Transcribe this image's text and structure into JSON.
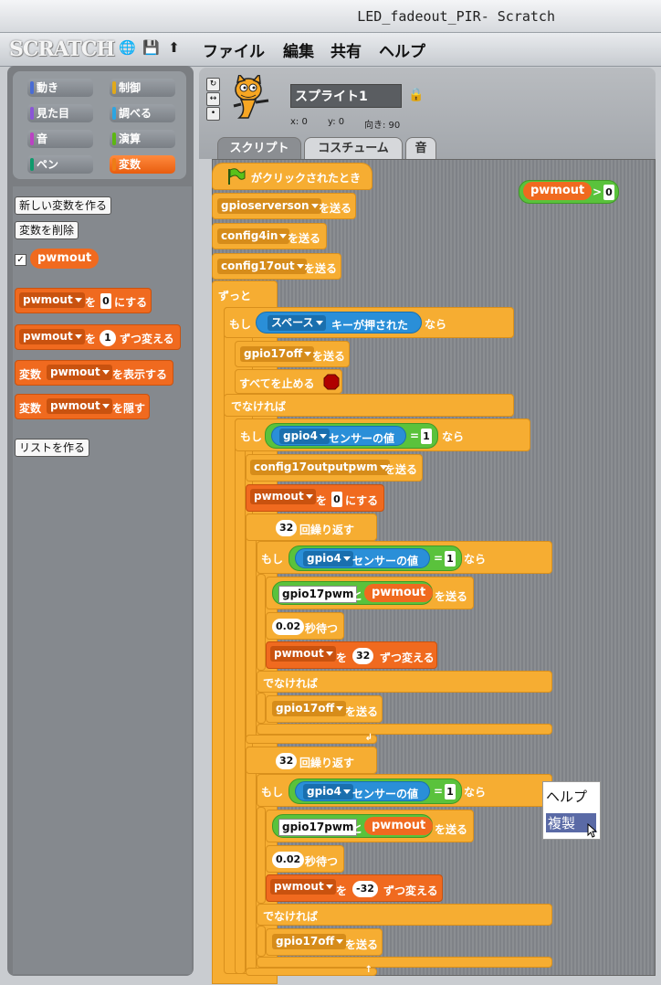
{
  "window": {
    "title": "LED_fadeout_PIR- Scratch"
  },
  "menubar": {
    "logo": "SCRATCH",
    "icons": [
      "globe-icon",
      "save-icon",
      "share-icon"
    ],
    "items": [
      "ファイル",
      "編集",
      "共有",
      "ヘルプ"
    ]
  },
  "categories": [
    {
      "label": "動き",
      "color": "#4a6cd4"
    },
    {
      "label": "制御",
      "color": "#e1a91a"
    },
    {
      "label": "見た目",
      "color": "#8a55d7"
    },
    {
      "label": "調べる",
      "color": "#2ca5e2"
    },
    {
      "label": "音",
      "color": "#bb42c3"
    },
    {
      "label": "演算",
      "color": "#5cb712"
    },
    {
      "label": "ペン",
      "color": "#0e9a6c"
    },
    {
      "label": "変数",
      "color": "#ee7d16"
    }
  ],
  "palette": {
    "new_var": "新しい変数を作る",
    "delete_var": "変数を削除",
    "var_name": "pwmout",
    "set_var": "pwmout",
    "set_to": "を",
    "set_val": "0",
    "set_suffix": "にする",
    "change_var": "pwmout",
    "change_to": "を",
    "change_val": "1",
    "change_suffix": "ずつ変える",
    "show_prefix": "変数",
    "show_var": "pwmout",
    "show_suffix": "を表示する",
    "hide_prefix": "変数",
    "hide_var": "pwmout",
    "hide_suffix": "を隠す",
    "new_list": "リストを作る"
  },
  "sprite": {
    "name": "スプライト1",
    "x_label": "x: 0",
    "y_label": "y: 0",
    "dir_label": "向き: 90"
  },
  "tabs": [
    "スクリプト",
    "コスチューム",
    "音"
  ],
  "floating_reporter": {
    "var": "pwmout",
    "op": ">",
    "val": "0"
  },
  "script": {
    "hat": "がクリックされたとき",
    "send": "を送る",
    "msg1": "gpioserverson",
    "msg2": "config4in",
    "msg3": "config17out",
    "forever": "ずっと",
    "if": "もし",
    "then": "なら",
    "key": "スペース",
    "key_suffix": "キーが押された",
    "msg_off": "gpio17off",
    "stop_all": "すべてを止める",
    "else": "でなければ",
    "sensor": "gpio4",
    "sensor_suffix": "センサーの値",
    "eq": "=",
    "one": "1",
    "msg_pwm": "config17outputpwm",
    "set_var": "pwmout",
    "set_to": "を",
    "zero": "0",
    "set_suffix": "にする",
    "repeat_n": "32",
    "repeat_suffix": "回繰り返す",
    "join_text": "gpio17pwm",
    "join_and": "と",
    "join_var": "pwmout",
    "wait_val": "0.02",
    "wait_suffix": "秒待つ",
    "change_var": "pwmout",
    "change_to": "を",
    "change_up": "32",
    "change_down": "-32",
    "change_suffix": "ずつ変える"
  },
  "context_menu": [
    "ヘルプ",
    "複製"
  ]
}
